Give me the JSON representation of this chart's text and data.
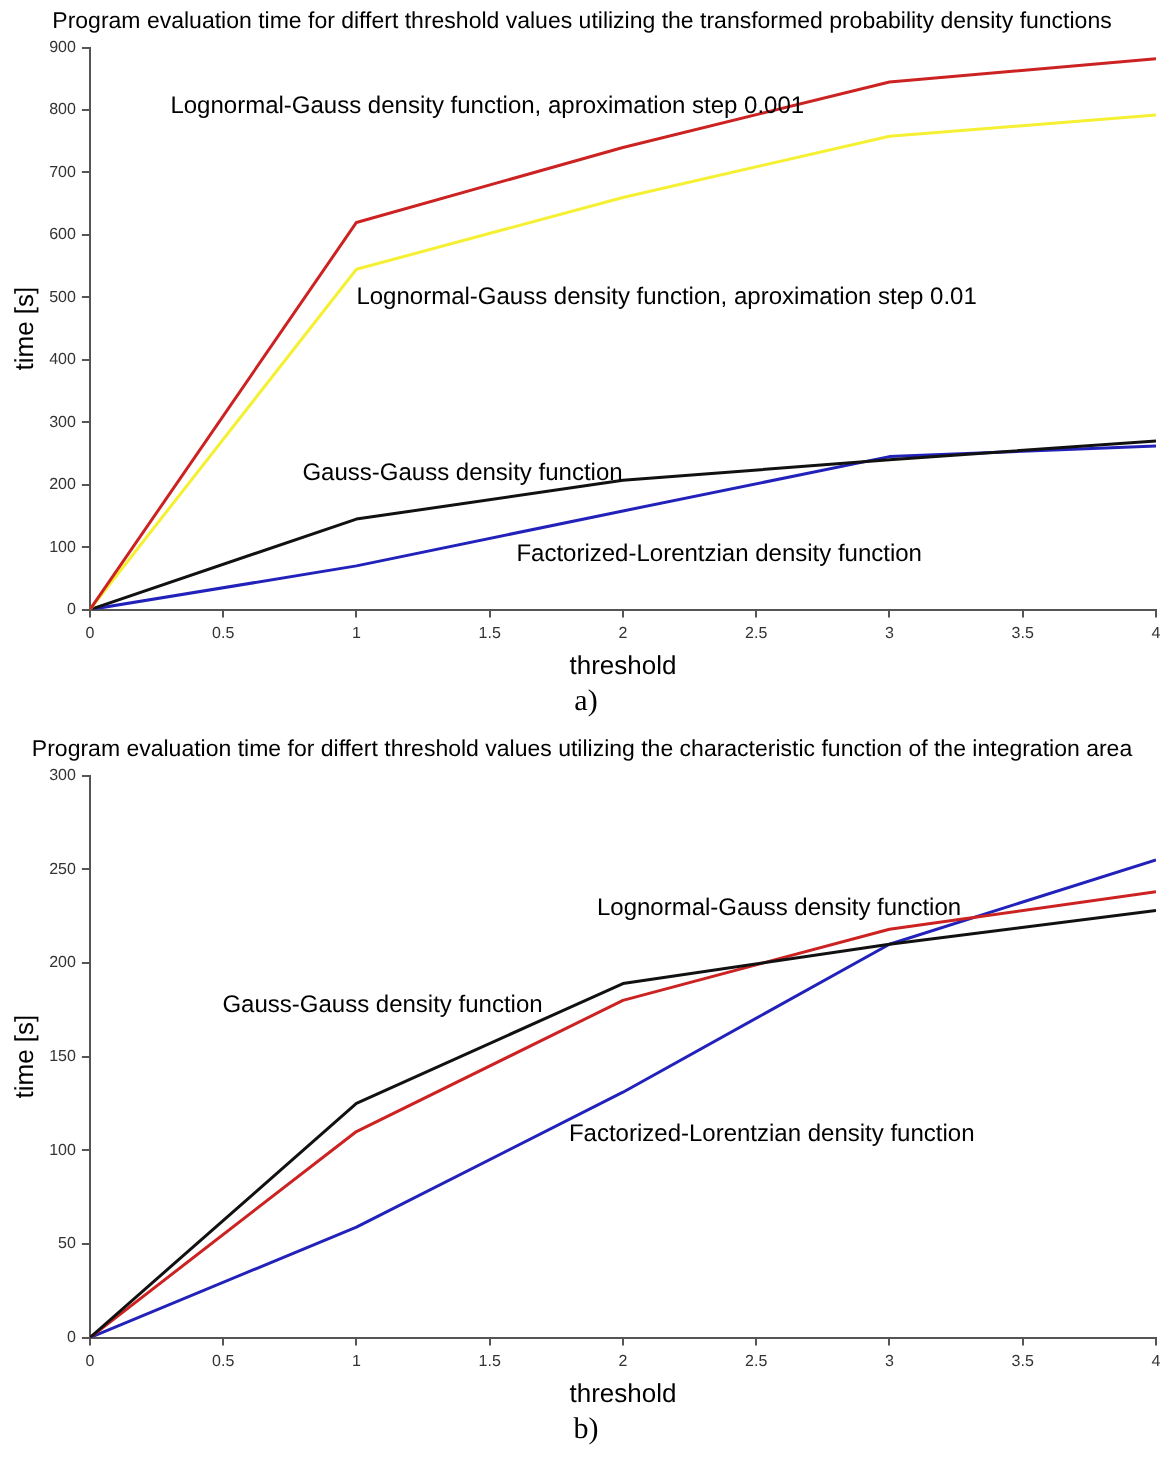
{
  "chart_data": [
    {
      "type": "line",
      "title": "Program evaluation time for differt threshold values utilizing the transformed probability density functions",
      "xlabel": "threshold",
      "ylabel": "time [s]",
      "x": [
        0,
        1,
        2,
        3,
        4
      ],
      "xlim": [
        0,
        4
      ],
      "xticks": [
        0,
        0.5,
        1,
        1.5,
        2,
        2.5,
        3,
        3.5,
        4
      ],
      "ylim": [
        0,
        900
      ],
      "yticks": [
        0,
        100,
        200,
        300,
        400,
        500,
        600,
        700,
        800,
        900
      ],
      "grid": false,
      "legend": false,
      "marker": "none",
      "line_style": "solid",
      "series": [
        {
          "name": "Lognormal-Gauss density function, aproximation step 0.001",
          "color": "#cc2222",
          "values": [
            0,
            620,
            740,
            845,
            882
          ]
        },
        {
          "name": "Lognormal-Gauss density function, aproximation step 0.01",
          "color": "#f5f032",
          "values": [
            0,
            545,
            660,
            758,
            792
          ]
        },
        {
          "name": "Gauss-Gauss density function",
          "color": "#111111",
          "values": [
            0,
            145,
            207,
            240,
            270
          ]
        },
        {
          "name": "Factorized-Lorentzian density function",
          "color": "#2222bb",
          "values": [
            0,
            70,
            158,
            245,
            262
          ]
        }
      ],
      "annotations": [
        "a)"
      ]
    },
    {
      "type": "line",
      "title": "Program evaluation time for differt threshold values utilizing the characteristic function of the integration area",
      "xlabel": "threshold",
      "ylabel": "time [s]",
      "x": [
        0,
        1,
        2,
        3,
        4
      ],
      "xlim": [
        0,
        4
      ],
      "xticks": [
        0,
        0.5,
        1,
        1.5,
        2,
        2.5,
        3,
        3.5,
        4
      ],
      "ylim": [
        0,
        300
      ],
      "yticks": [
        0,
        50,
        100,
        150,
        200,
        250,
        300
      ],
      "grid": false,
      "legend": false,
      "marker": "none",
      "line_style": "solid",
      "series": [
        {
          "name": "Gauss-Gauss density function",
          "color": "#111111",
          "values": [
            0,
            125,
            189,
            210,
            228
          ]
        },
        {
          "name": "Lognormal-Gauss density function",
          "color": "#cc2222",
          "values": [
            0,
            110,
            180,
            218,
            238
          ]
        },
        {
          "name": "Factorized-Lorentzian density function",
          "color": "#2222bb",
          "values": [
            0,
            59,
            131,
            210,
            255
          ]
        }
      ],
      "annotations": [
        "b)"
      ]
    }
  ]
}
